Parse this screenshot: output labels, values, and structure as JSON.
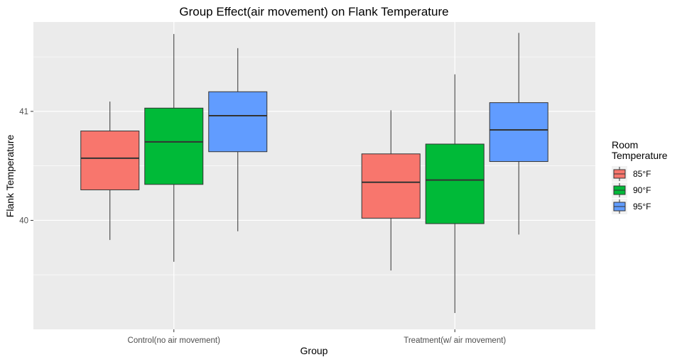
{
  "chart_data": {
    "type": "boxplot",
    "title": "Group Effect(air movement) on Flank Temperature",
    "xlabel": "Group",
    "ylabel": "Flank Temperature",
    "ylim": [
      39.0,
      41.82
    ],
    "y_ticks": [
      "40",
      "41"
    ],
    "categories": [
      "Control(no air movement)",
      "Treatment(w/ air movement)"
    ],
    "legend": {
      "title_lines": [
        "Room",
        "Temperature"
      ],
      "position": "right"
    },
    "grid": true,
    "series": [
      {
        "name": "85°F",
        "color": "#F8766D",
        "boxes": [
          {
            "min": 39.82,
            "q1": 40.28,
            "median": 40.57,
            "q3": 40.82,
            "max": 41.09
          },
          {
            "min": 39.54,
            "q1": 40.02,
            "median": 40.35,
            "q3": 40.61,
            "max": 41.01
          }
        ]
      },
      {
        "name": "90°F",
        "color": "#00BA38",
        "boxes": [
          {
            "min": 39.62,
            "q1": 40.33,
            "median": 40.72,
            "q3": 41.03,
            "max": 41.71
          },
          {
            "min": 39.15,
            "q1": 39.97,
            "median": 40.37,
            "q3": 40.7,
            "max": 41.34
          }
        ]
      },
      {
        "name": "95°F",
        "color": "#619CFF",
        "boxes": [
          {
            "min": 39.9,
            "q1": 40.63,
            "median": 40.96,
            "q3": 41.18,
            "max": 41.58
          },
          {
            "min": 39.87,
            "q1": 40.54,
            "median": 40.83,
            "q3": 41.08,
            "max": 41.72
          }
        ]
      }
    ]
  }
}
